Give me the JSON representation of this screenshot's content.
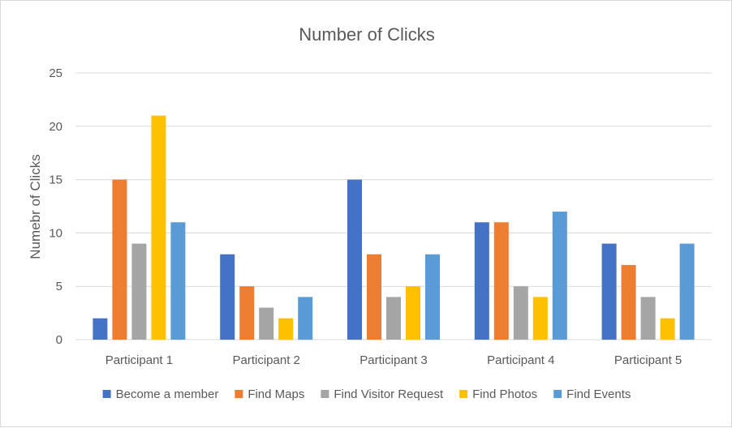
{
  "chart_data": {
    "type": "bar",
    "title": "Number of Clicks",
    "xlabel": "",
    "ylabel": "Numebr of Clicks",
    "ylim": [
      0,
      25
    ],
    "yticks": [
      0,
      5,
      10,
      15,
      20,
      25
    ],
    "grid": true,
    "legend_position": "bottom",
    "categories": [
      "Participant 1",
      "Participant 2",
      "Participant 3",
      "Participant 4",
      "Participant 5"
    ],
    "series": [
      {
        "name": "Become a member",
        "color": "#4472c4",
        "values": [
          2,
          8,
          15,
          11,
          9
        ]
      },
      {
        "name": "Find Maps",
        "color": "#ed7d31",
        "values": [
          15,
          5,
          8,
          11,
          7
        ]
      },
      {
        "name": "Find Visitor Request",
        "color": "#a5a5a5",
        "values": [
          9,
          3,
          4,
          5,
          4
        ]
      },
      {
        "name": "Find Photos",
        "color": "#ffc000",
        "values": [
          21,
          2,
          5,
          4,
          2
        ]
      },
      {
        "name": "Find Events",
        "color": "#5b9bd5",
        "values": [
          11,
          4,
          8,
          12,
          9
        ]
      }
    ]
  }
}
